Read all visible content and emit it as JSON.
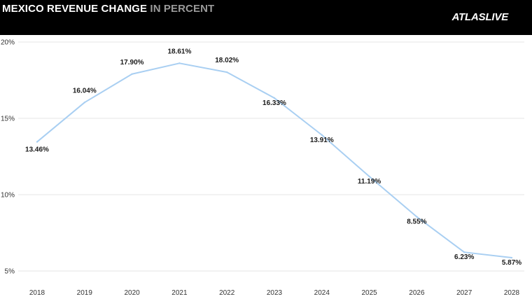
{
  "header": {
    "title_main": "MEXICO REVENUE CHANGE",
    "title_accent": "IN PERCENT",
    "logo": "ATLASLIVE"
  },
  "colors": {
    "header_bg": "#000000",
    "line": "#a9cff2",
    "grid": "#e6e6e6"
  },
  "chart_data": {
    "type": "line",
    "title": "MEXICO REVENUE CHANGE IN PERCENT",
    "categories": [
      "2018",
      "2019",
      "2020",
      "2021",
      "2022",
      "2023",
      "2024",
      "2025",
      "2026",
      "2027",
      "2028"
    ],
    "series": [
      {
        "values": [
          13.46,
          16.04,
          17.9,
          18.61,
          18.02,
          16.33,
          13.91,
          11.19,
          8.55,
          6.23,
          5.87
        ]
      }
    ],
    "data_labels": [
      "13.46%",
      "16.04%",
      "17.90%",
      "18.61%",
      "18.02%",
      "16.33%",
      "13.91%",
      "11.19%",
      "8.55%",
      "6.23%",
      "5.87%"
    ],
    "ylim": [
      5,
      20
    ],
    "yticks": [
      5,
      10,
      15,
      20
    ],
    "ytick_labels": [
      "5%",
      "10%",
      "15%",
      "20%"
    ],
    "xlabel": "",
    "ylabel": "",
    "grid": true,
    "legend": "none"
  }
}
